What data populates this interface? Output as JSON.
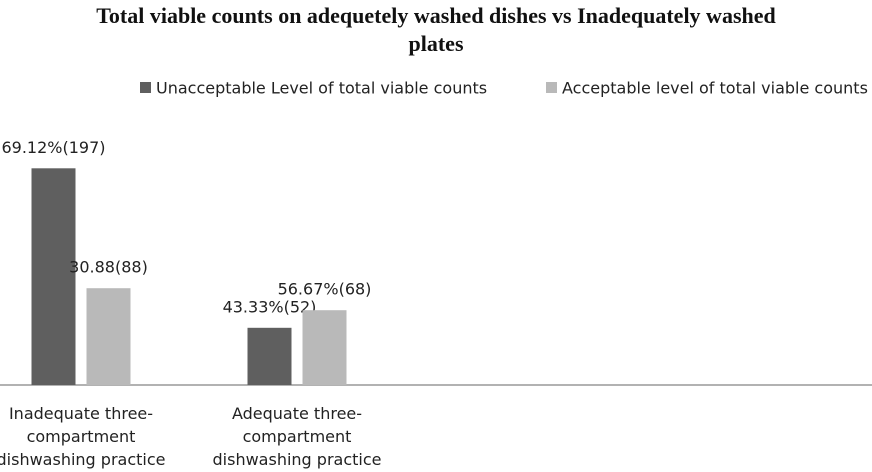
{
  "chart_data": {
    "type": "bar",
    "title": "Total viable counts on adequetely washed dishes vs Inadequately washed plates",
    "categories": [
      "Inadequate three-compartment dishwashing practice",
      "Adequate three-compartment dishwashing practice"
    ],
    "series": [
      {
        "name": "Unacceptable Level of total viable counts",
        "color": "#5f5f5f",
        "values": [
          197,
          52
        ],
        "value_labels": [
          "69.12%(197)",
          "43.33%(52)"
        ]
      },
      {
        "name": "Acceptable level of total viable counts",
        "color": "#b9b9b9",
        "values": [
          88,
          68
        ],
        "value_labels": [
          "30.88(88)",
          "56.67%(68)"
        ]
      }
    ]
  }
}
